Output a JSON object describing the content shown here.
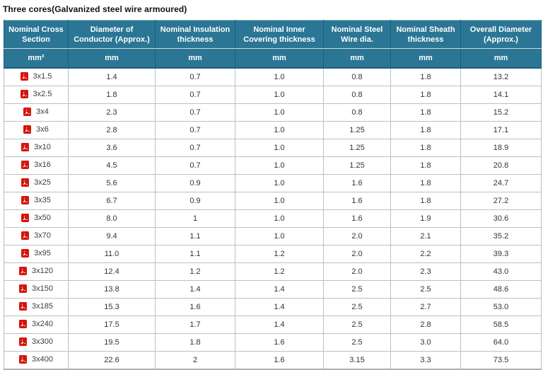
{
  "page": {
    "title": "Three cores(Galvanized steel wire armoured)"
  },
  "colors": {
    "header_bg": "#2b7695",
    "header_text": "#ffffff",
    "header_divider": "#17607c",
    "body_border": "#b6c2c5",
    "body_text": "#333333",
    "pdf_icon_red": "#d6140f"
  },
  "icons": {
    "row_icon": "pdf-file-icon"
  },
  "table": {
    "columns": [
      {
        "key": "nominal-cross-section",
        "label": "Nominal Cross Section",
        "unit": "mm²"
      },
      {
        "key": "diameter-of-conductor",
        "label": "Diameter of Conductor (Approx.)",
        "unit": "mm"
      },
      {
        "key": "nominal-insulation-thickness",
        "label": "Nominal Insulation thickness",
        "unit": "mm"
      },
      {
        "key": "nominal-inner-covering-thickness",
        "label": "Nominal Inner Covering thickness",
        "unit": "mm"
      },
      {
        "key": "nominal-steel-wire-dia",
        "label": "Nominal Steel Wire dia.",
        "unit": "mm"
      },
      {
        "key": "nominal-sheath-thickness",
        "label": "Nominal Sheath thickness",
        "unit": "mm"
      },
      {
        "key": "overall-diameter",
        "label": "Overall Diameter (Approx.)",
        "unit": "mm"
      }
    ],
    "rows": [
      {
        "section": "3x1.5",
        "values": [
          "1.4",
          "0.7",
          "1.0",
          "0.8",
          "1.8",
          "13.2"
        ]
      },
      {
        "section": "3x2.5",
        "values": [
          "1.8",
          "0.7",
          "1.0",
          "0.8",
          "1.8",
          "14.1"
        ]
      },
      {
        "section": "3x4",
        "values": [
          "2.3",
          "0.7",
          "1.0",
          "0.8",
          "1.8",
          "15.2"
        ]
      },
      {
        "section": "3x6",
        "values": [
          "2.8",
          "0.7",
          "1.0",
          "1.25",
          "1.8",
          "17.1"
        ]
      },
      {
        "section": "3x10",
        "values": [
          "3.6",
          "0.7",
          "1.0",
          "1.25",
          "1.8",
          "18.9"
        ]
      },
      {
        "section": "3x16",
        "values": [
          "4.5",
          "0.7",
          "1.0",
          "1.25",
          "1.8",
          "20.8"
        ]
      },
      {
        "section": "3x25",
        "values": [
          "5.6",
          "0.9",
          "1.0",
          "1.6",
          "1.8",
          "24.7"
        ]
      },
      {
        "section": "3x35",
        "values": [
          "6.7",
          "0.9",
          "1.0",
          "1.6",
          "1.8",
          "27.2"
        ]
      },
      {
        "section": "3x50",
        "values": [
          "8.0",
          "1",
          "1.0",
          "1.6",
          "1.9",
          "30.6"
        ]
      },
      {
        "section": "3x70",
        "values": [
          "9.4",
          "1.1",
          "1.0",
          "2.0",
          "2.1",
          "35.2"
        ]
      },
      {
        "section": "3x95",
        "values": [
          "11.0",
          "1.1",
          "1.2",
          "2.0",
          "2.2",
          "39.3"
        ]
      },
      {
        "section": "3x120",
        "values": [
          "12.4",
          "1.2",
          "1.2",
          "2.0",
          "2.3",
          "43.0"
        ]
      },
      {
        "section": "3x150",
        "values": [
          "13.8",
          "1.4",
          "1.4",
          "2.5",
          "2.5",
          "48.6"
        ]
      },
      {
        "section": "3x185",
        "values": [
          "15.3",
          "1.6",
          "1.4",
          "2.5",
          "2.7",
          "53.0"
        ]
      },
      {
        "section": "3x240",
        "values": [
          "17.5",
          "1.7",
          "1.4",
          "2.5",
          "2.8",
          "58.5"
        ]
      },
      {
        "section": "3x300",
        "values": [
          "19.5",
          "1.8",
          "1.6",
          "2.5",
          "3.0",
          "64.0"
        ]
      },
      {
        "section": "3x400",
        "values": [
          "22.6",
          "2",
          "1.6",
          "3.15",
          "3.3",
          "73.5"
        ]
      }
    ]
  }
}
